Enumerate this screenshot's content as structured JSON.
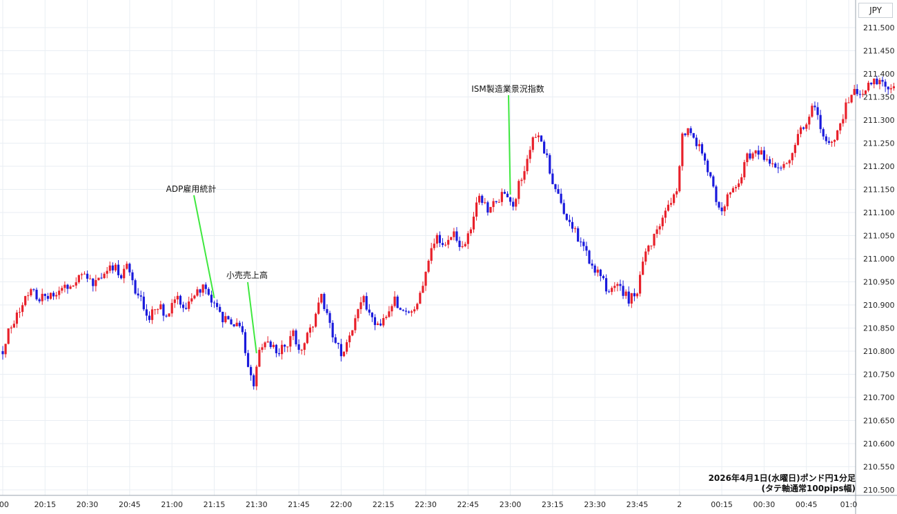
{
  "currency_label": "JPY",
  "caption": {
    "line1": "2026年4月1日(水曜日)ポンド円1分足",
    "line2": "(タテ軸通常100pips幅)"
  },
  "annotations": [
    {
      "text": "ADP雇用統計",
      "time": "21:15"
    },
    {
      "text": "小売売上高",
      "time": "21:30"
    },
    {
      "text": "ISM製造業景況指数",
      "time": "23:00"
    }
  ],
  "colors": {
    "up": "#e8202a",
    "down": "#1a1adc",
    "annotation_line": "#3ee83e",
    "grid": "#e9eef3"
  },
  "chart_data": {
    "type": "candlestick",
    "title": "2026年4月1日(水曜日)ポンド円1分足",
    "interval": "1 minute",
    "ylim": [
      210.5,
      211.5
    ],
    "y_ticks": [
      "211.500",
      "211.450",
      "211.400",
      "211.350",
      "211.300",
      "211.250",
      "211.200",
      "211.150",
      "211.100",
      "211.050",
      "211.000",
      "210.950",
      "210.900",
      "210.850",
      "210.800",
      "210.750",
      "210.700",
      "210.650",
      "210.600",
      "210.550",
      "210.500"
    ],
    "x_ticks": [
      ":00",
      "20:15",
      "20:30",
      "20:45",
      "21:00",
      "21:15",
      "21:30",
      "21:45",
      "22:00",
      "22:15",
      "22:30",
      "22:45",
      "23:00",
      "23:15",
      "23:30",
      "23:45",
      "2",
      "00:15",
      "00:30",
      "00:45",
      "01:0"
    ],
    "x_start": "20:00",
    "x_end": "01:00",
    "close_path": [
      [
        "20:00",
        210.8
      ],
      [
        "20:02",
        210.85
      ],
      [
        "20:05",
        210.88
      ],
      [
        "20:08",
        210.91
      ],
      [
        "20:10",
        210.94
      ],
      [
        "20:12",
        210.92
      ],
      [
        "20:15",
        210.91
      ],
      [
        "20:20",
        210.93
      ],
      [
        "20:25",
        210.95
      ],
      [
        "20:28",
        210.97
      ],
      [
        "20:32",
        210.94
      ],
      [
        "20:36",
        210.97
      ],
      [
        "20:40",
        210.98
      ],
      [
        "20:42",
        210.96
      ],
      [
        "20:44",
        210.99
      ],
      [
        "20:46",
        210.95
      ],
      [
        "20:48",
        210.92
      ],
      [
        "20:52",
        210.87
      ],
      [
        "20:55",
        210.9
      ],
      [
        "20:58",
        210.88
      ],
      [
        "21:02",
        210.91
      ],
      [
        "21:05",
        210.89
      ],
      [
        "21:08",
        210.92
      ],
      [
        "21:10",
        210.93
      ],
      [
        "21:12",
        210.94
      ],
      [
        "21:15",
        210.9
      ],
      [
        "21:18",
        210.87
      ],
      [
        "21:22",
        210.86
      ],
      [
        "21:25",
        210.84
      ],
      [
        "21:27",
        210.77
      ],
      [
        "21:29",
        210.72
      ],
      [
        "21:31",
        210.8
      ],
      [
        "21:34",
        210.82
      ],
      [
        "21:37",
        210.8
      ],
      [
        "21:40",
        210.81
      ],
      [
        "21:43",
        210.84
      ],
      [
        "21:45",
        210.8
      ],
      [
        "21:48",
        210.84
      ],
      [
        "21:50",
        210.86
      ],
      [
        "21:53",
        210.92
      ],
      [
        "21:56",
        210.86
      ],
      [
        "21:58",
        210.82
      ],
      [
        "22:01",
        210.79
      ],
      [
        "22:03",
        210.83
      ],
      [
        "22:05",
        210.88
      ],
      [
        "22:08",
        210.91
      ],
      [
        "22:10",
        210.88
      ],
      [
        "22:13",
        210.86
      ],
      [
        "22:16",
        210.88
      ],
      [
        "22:19",
        210.91
      ],
      [
        "22:22",
        210.88
      ],
      [
        "22:25",
        210.89
      ],
      [
        "22:28",
        210.92
      ],
      [
        "22:31",
        211.0
      ],
      [
        "22:34",
        211.05
      ],
      [
        "22:37",
        211.03
      ],
      [
        "22:40",
        211.06
      ],
      [
        "22:43",
        211.02
      ],
      [
        "22:46",
        211.06
      ],
      [
        "22:49",
        211.14
      ],
      [
        "22:52",
        211.1
      ],
      [
        "22:55",
        211.13
      ],
      [
        "22:58",
        211.14
      ],
      [
        "23:01",
        211.12
      ],
      [
        "23:03",
        211.16
      ],
      [
        "23:05",
        211.2
      ],
      [
        "23:07",
        211.24
      ],
      [
        "23:09",
        211.27
      ],
      [
        "23:11",
        211.26
      ],
      [
        "23:14",
        211.19
      ],
      [
        "23:17",
        211.13
      ],
      [
        "23:20",
        211.09
      ],
      [
        "23:23",
        211.06
      ],
      [
        "23:26",
        211.02
      ],
      [
        "23:29",
        210.99
      ],
      [
        "23:32",
        210.96
      ],
      [
        "23:35",
        210.93
      ],
      [
        "23:37",
        210.95
      ],
      [
        "23:39",
        210.94
      ],
      [
        "23:42",
        210.91
      ],
      [
        "23:45",
        210.93
      ],
      [
        "23:48",
        211.01
      ],
      [
        "23:51",
        211.05
      ],
      [
        "23:54",
        211.08
      ],
      [
        "23:57",
        211.13
      ],
      [
        "23:59",
        211.14
      ],
      [
        "00:01",
        211.26
      ],
      [
        "00:03",
        211.28
      ],
      [
        "00:05",
        211.26
      ],
      [
        "00:07",
        211.24
      ],
      [
        "00:09",
        211.22
      ],
      [
        "00:11",
        211.17
      ],
      [
        "00:13",
        211.13
      ],
      [
        "00:15",
        211.1
      ],
      [
        "00:18",
        211.15
      ],
      [
        "00:21",
        211.17
      ],
      [
        "00:24",
        211.22
      ],
      [
        "00:27",
        211.24
      ],
      [
        "00:30",
        211.22
      ],
      [
        "00:33",
        211.2
      ],
      [
        "00:36",
        211.19
      ],
      [
        "00:39",
        211.22
      ],
      [
        "00:42",
        211.26
      ],
      [
        "00:45",
        211.3
      ],
      [
        "00:48",
        211.33
      ],
      [
        "00:50",
        211.28
      ],
      [
        "00:53",
        211.25
      ],
      [
        "00:56",
        211.27
      ],
      [
        "00:59",
        211.33
      ],
      [
        "01:02",
        211.36
      ],
      [
        "01:05",
        211.35
      ],
      [
        "01:08",
        211.38
      ],
      [
        "01:11",
        211.39
      ],
      [
        "01:14",
        211.37
      ],
      [
        "01:16",
        211.37
      ]
    ]
  }
}
